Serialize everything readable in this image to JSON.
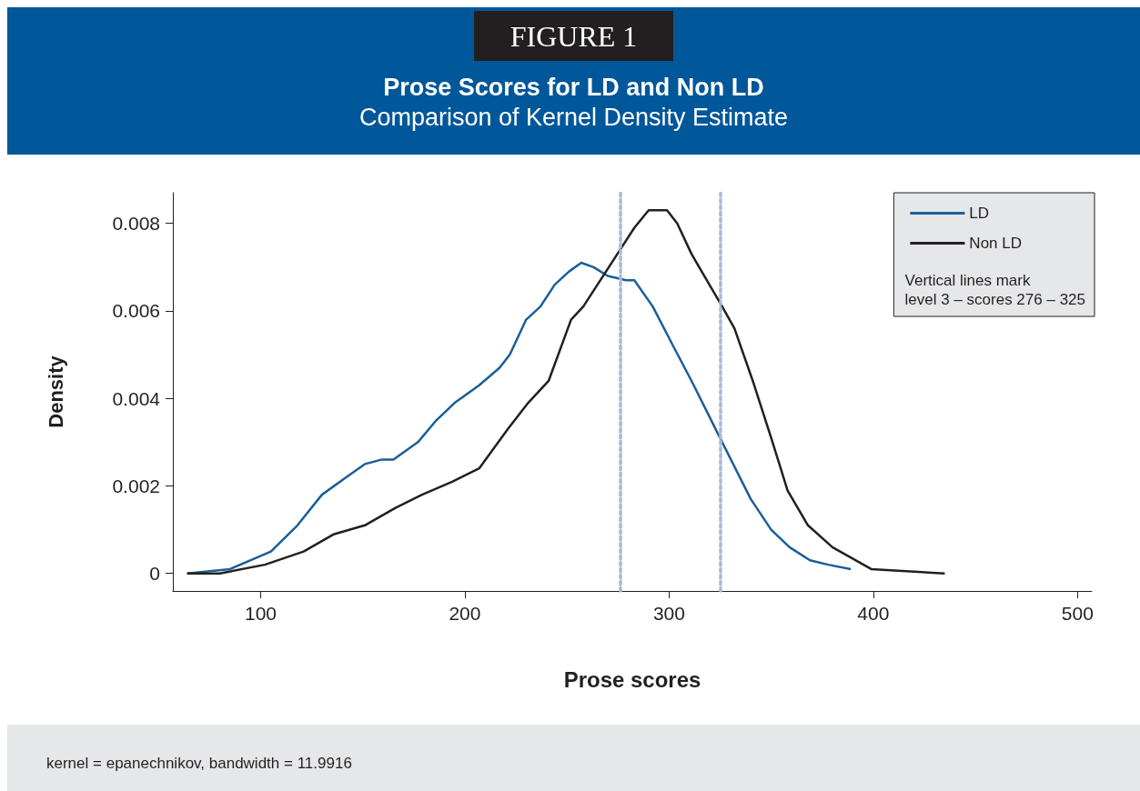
{
  "chart_data": {
    "type": "line",
    "title": "Prose Scores for LD and Non LD",
    "subtitle": "Comparison of Kernel Density Estimate",
    "xlabel": "Prose scores",
    "ylabel": "Density",
    "annotations": [
      "FIGURE 1",
      "Vertical lines mark\nlevel 3 – scores 276 – 325",
      "kernel = epanechnikov, bandwidth = 11.9916"
    ],
    "series": [
      {
        "name": "LD",
        "color": "#1a5e9a",
        "x": [
          64,
          85,
          105,
          118,
          130,
          142,
          151,
          159,
          165,
          177,
          186,
          195,
          207,
          217,
          222,
          230,
          237,
          244,
          251,
          257,
          263,
          270,
          279,
          283,
          292,
          302,
          311,
          326,
          340,
          350,
          359,
          369,
          378,
          389
        ],
        "values": [
          0,
          0.0001,
          0.0005,
          0.0011,
          0.0018,
          0.0022,
          0.0025,
          0.0026,
          0.0026,
          0.003,
          0.0035,
          0.0039,
          0.0043,
          0.0047,
          0.005,
          0.0058,
          0.0061,
          0.0066,
          0.0069,
          0.0071,
          0.007,
          0.0068,
          0.0067,
          0.0067,
          0.0061,
          0.0052,
          0.0044,
          0.003,
          0.0017,
          0.001,
          0.0006,
          0.0003,
          0.0002,
          0.0001
        ]
      },
      {
        "name": "Non LD",
        "color": "#231f20",
        "x": [
          64,
          80,
          102,
          121,
          136,
          151,
          166,
          179,
          194,
          207,
          221,
          231,
          241,
          252,
          258,
          283,
          290,
          299,
          304,
          311,
          326,
          332,
          341,
          350,
          358,
          368,
          380,
          399,
          435
        ],
        "values": [
          0,
          0,
          0.0002,
          0.0005,
          0.0009,
          0.0011,
          0.0015,
          0.0018,
          0.0021,
          0.0024,
          0.0033,
          0.0039,
          0.0044,
          0.0058,
          0.0061,
          0.0079,
          0.0083,
          0.0083,
          0.008,
          0.0073,
          0.0061,
          0.0056,
          0.0044,
          0.0031,
          0.0019,
          0.0011,
          0.0006,
          0.0001,
          0
        ]
      }
    ],
    "xlim": [
      57,
      507
    ],
    "xticks": [
      100,
      200,
      300,
      400,
      500
    ],
    "ylim": [
      -0.0004,
      0.0087
    ],
    "yticks": [
      0,
      0.002,
      0.004,
      0.006,
      0.008
    ],
    "ref_lines": [
      {
        "axis": "x",
        "value": 276,
        "color": "#a9b9da",
        "line_style": "dotted"
      },
      {
        "axis": "x",
        "value": 325,
        "color": "#a9b9da",
        "line_style": "dotted"
      }
    ],
    "grid": false,
    "legend": "top right",
    "marker": "none",
    "line_style": "solid"
  }
}
